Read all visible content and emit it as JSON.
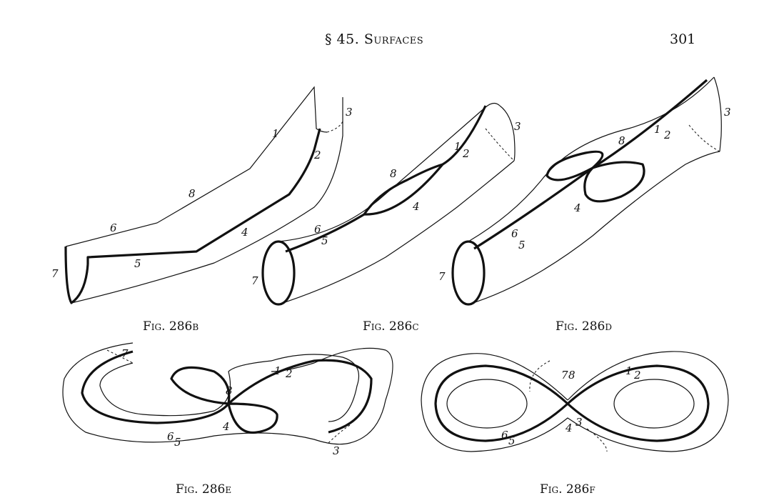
{
  "header": {
    "section": "§ 45.",
    "title": "Surfaces",
    "page_number": "301"
  },
  "figures": [
    {
      "id": "286b",
      "caption": "Fig. 286b",
      "labels": [
        "7",
        "3",
        "1",
        "2",
        "8",
        "4",
        "6",
        "5"
      ]
    },
    {
      "id": "286c",
      "caption": "Fig. 286c",
      "labels": [
        "3",
        "1",
        "2",
        "8",
        "4",
        "6",
        "5",
        "7"
      ]
    },
    {
      "id": "286d",
      "caption": "Fig. 286d",
      "labels": [
        "3",
        "1",
        "2",
        "8",
        "4",
        "6",
        "5",
        "7"
      ]
    },
    {
      "id": "286e",
      "caption": "Fig. 286e",
      "labels": [
        "7",
        "1",
        "2",
        "8",
        "4",
        "6",
        "5",
        "3"
      ]
    },
    {
      "id": "286f",
      "caption": "Fig. 286f",
      "labels": [
        "7",
        "8",
        "1",
        "2",
        "6",
        "5",
        "4",
        "3"
      ]
    }
  ]
}
